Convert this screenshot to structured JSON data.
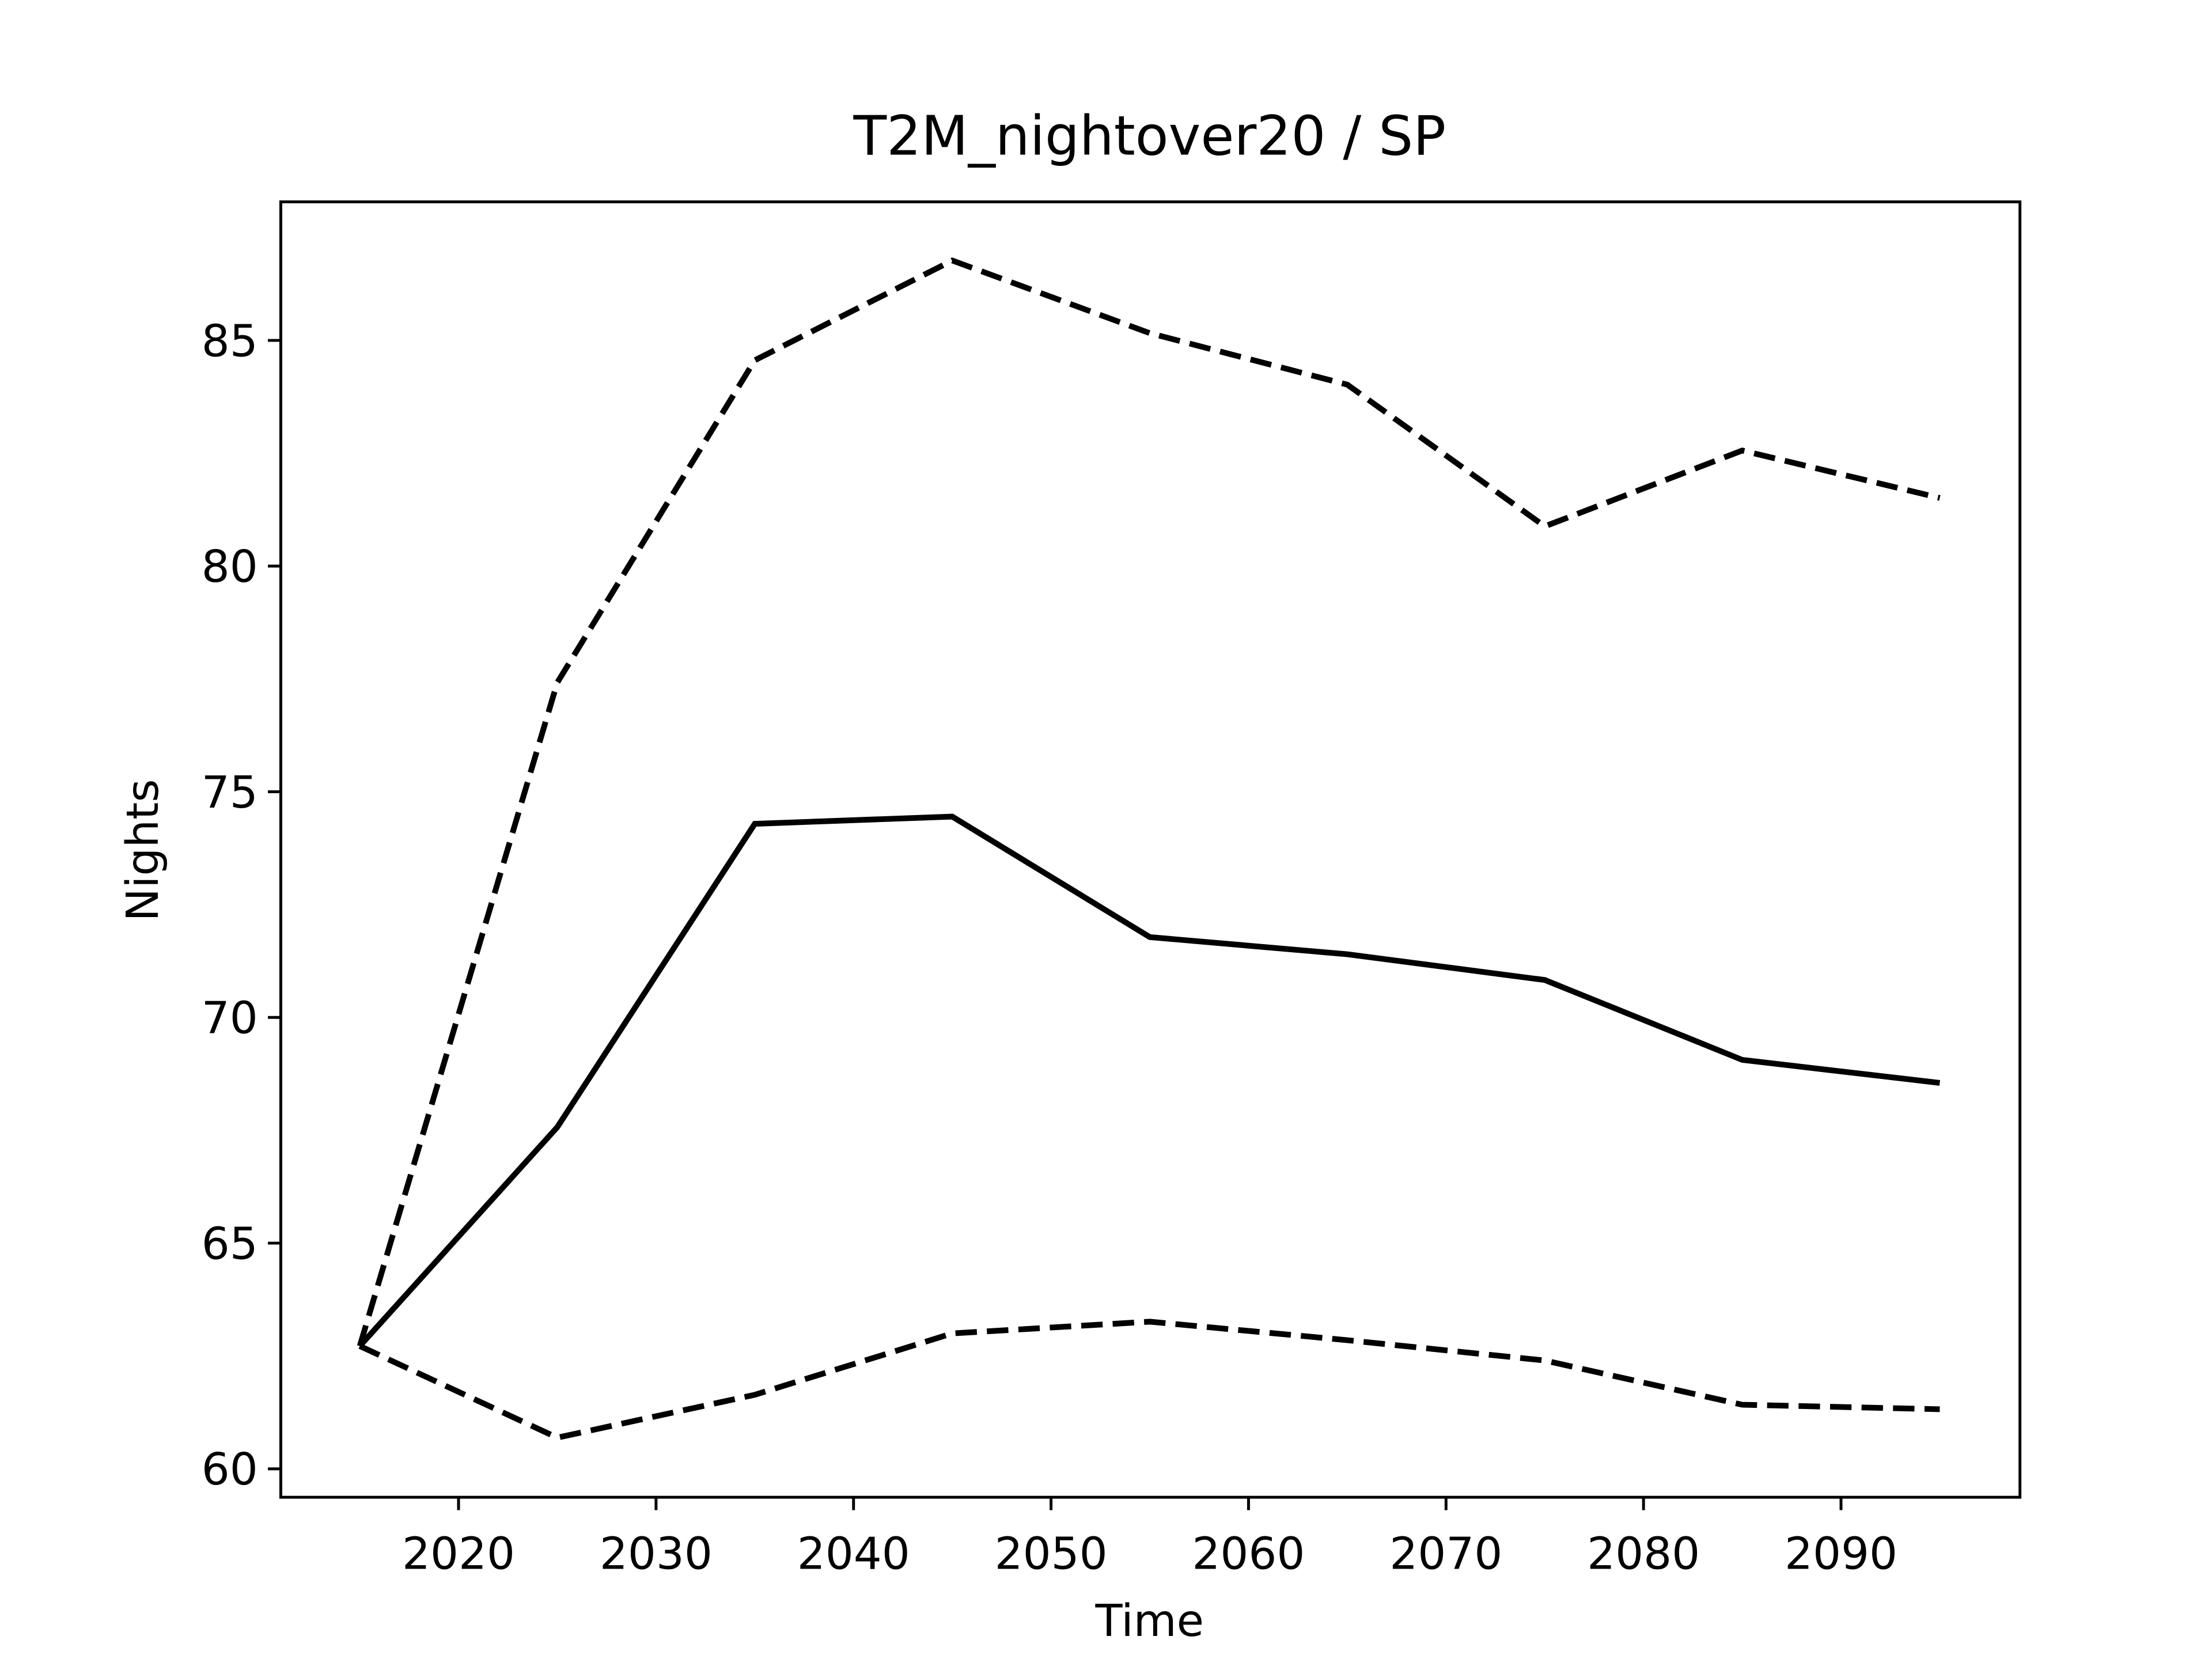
{
  "chart_data": {
    "type": "line",
    "title": "T2M_nightover20 / SP",
    "xlabel": "Time",
    "ylabel": "Nights",
    "x": [
      2015,
      2025,
      2035,
      2045,
      2055,
      2065,
      2075,
      2085,
      2095
    ],
    "series": [
      {
        "color": "#000000",
        "linestyle": "solid",
        "values": [
          62.72,
          67.57,
          74.29,
          74.45,
          71.78,
          71.4,
          70.83,
          69.06,
          68.55
        ]
      },
      {
        "color": "#000000",
        "linestyle": "dashed",
        "values": [
          62.72,
          77.42,
          84.56,
          86.77,
          85.16,
          84.02,
          80.88,
          82.56,
          81.51
        ]
      },
      {
        "color": "#000000",
        "linestyle": "dashed",
        "values": [
          62.72,
          60.69,
          61.64,
          63.0,
          63.26,
          62.85,
          62.4,
          61.42,
          61.32
        ]
      }
    ],
    "xlim": [
      2011.0,
      2099.06
    ],
    "ylim": [
      59.37,
      88.07
    ],
    "xticks": [
      2020,
      2030,
      2040,
      2050,
      2060,
      2070,
      2080,
      2090
    ],
    "yticks": [
      60,
      65,
      70,
      75,
      80,
      85
    ],
    "grid": false
  }
}
